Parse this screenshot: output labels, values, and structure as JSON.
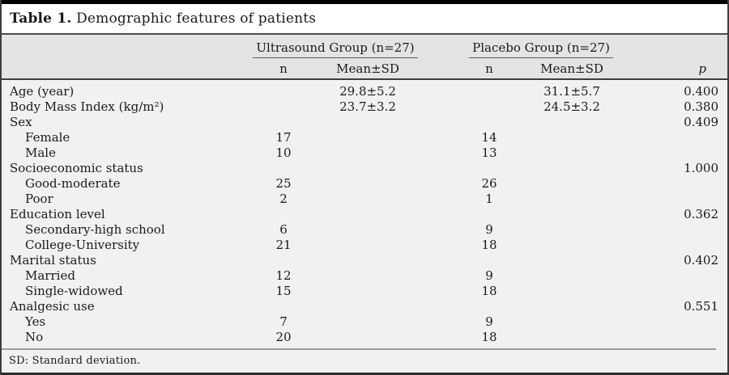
{
  "title": {
    "bold": "Table 1.",
    "rest": "Demographic features of patients"
  },
  "header": {
    "group_ultrasound": "Ultrasound Group (n=27)",
    "group_placebo": "Placebo Group (n=27)",
    "n_ultrasound": "n",
    "mean_ultrasound": "Mean±SD",
    "n_placebo": "n",
    "mean_placebo": "Mean±SD",
    "p": "p"
  },
  "rows": [
    {
      "label": "Age (year)",
      "indent": false,
      "u_n": "",
      "u_mean": "29.8±5.2",
      "p_n": "",
      "p_mean": "31.1±5.7",
      "p": "0.400"
    },
    {
      "label": "Body Mass Index (kg/m²)",
      "indent": false,
      "u_n": "",
      "u_mean": "23.7±3.2",
      "p_n": "",
      "p_mean": "24.5±3.2",
      "p": "0.380"
    },
    {
      "label": "Sex",
      "indent": false,
      "u_n": "",
      "u_mean": "",
      "p_n": "",
      "p_mean": "",
      "p": "0.409"
    },
    {
      "label": "Female",
      "indent": true,
      "u_n": "17",
      "u_mean": "",
      "p_n": "14",
      "p_mean": "",
      "p": ""
    },
    {
      "label": "Male",
      "indent": true,
      "u_n": "10",
      "u_mean": "",
      "p_n": "13",
      "p_mean": "",
      "p": ""
    },
    {
      "label": "Socioeconomic status",
      "indent": false,
      "u_n": "",
      "u_mean": "",
      "p_n": "",
      "p_mean": "",
      "p": "1.000"
    },
    {
      "label": "Good-moderate",
      "indent": true,
      "u_n": "25",
      "u_mean": "",
      "p_n": "26",
      "p_mean": "",
      "p": ""
    },
    {
      "label": "Poor",
      "indent": true,
      "u_n": "2",
      "u_mean": "",
      "p_n": "1",
      "p_mean": "",
      "p": ""
    },
    {
      "label": "Education level",
      "indent": false,
      "u_n": "",
      "u_mean": "",
      "p_n": "",
      "p_mean": "",
      "p": "0.362"
    },
    {
      "label": "Secondary-high school",
      "indent": true,
      "u_n": "6",
      "u_mean": "",
      "p_n": "9",
      "p_mean": "",
      "p": ""
    },
    {
      "label": "College-University",
      "indent": true,
      "u_n": "21",
      "u_mean": "",
      "p_n": "18",
      "p_mean": "",
      "p": ""
    },
    {
      "label": "Marital status",
      "indent": false,
      "u_n": "",
      "u_mean": "",
      "p_n": "",
      "p_mean": "",
      "p": "0.402"
    },
    {
      "label": "Married",
      "indent": true,
      "u_n": "12",
      "u_mean": "",
      "p_n": "9",
      "p_mean": "",
      "p": ""
    },
    {
      "label": "Single-widowed",
      "indent": true,
      "u_n": "15",
      "u_mean": "",
      "p_n": "18",
      "p_mean": "",
      "p": ""
    },
    {
      "label": "Analgesic use",
      "indent": false,
      "u_n": "",
      "u_mean": "",
      "p_n": "",
      "p_mean": "",
      "p": "0.551"
    },
    {
      "label": "Yes",
      "indent": true,
      "u_n": "7",
      "u_mean": "",
      "p_n": "9",
      "p_mean": "",
      "p": ""
    },
    {
      "label": "No",
      "indent": true,
      "u_n": "20",
      "u_mean": "",
      "p_n": "18",
      "p_mean": "",
      "p": ""
    }
  ],
  "footnote": "SD: Standard deviation.",
  "colors": {
    "top_bar": "#000000",
    "header_band": "#e3e4e6",
    "body_band": "#f0f1f2",
    "rule_dark": "#3d3d3d",
    "rule_gray": "#9b9b9b"
  }
}
